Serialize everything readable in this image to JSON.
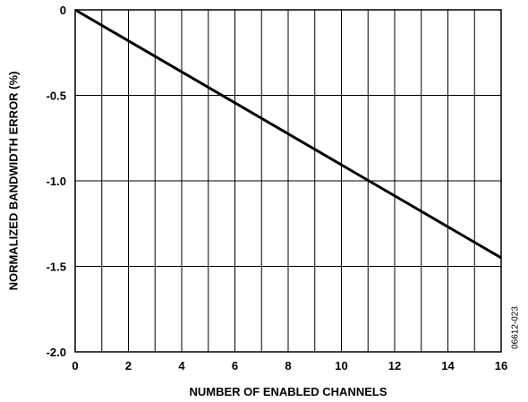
{
  "chart_data": {
    "type": "line",
    "title": "",
    "xlabel": "NUMBER OF ENABLED CHANNELS",
    "ylabel": "NORMALIZED BANDWIDTH ERROR (%)",
    "xlim": [
      0,
      16
    ],
    "ylim": [
      -2.0,
      0
    ],
    "grid": true,
    "x_ticks": [
      0,
      2,
      4,
      6,
      8,
      10,
      12,
      14,
      16
    ],
    "x_tick_labels": [
      "0",
      "2",
      "4",
      "6",
      "8",
      "10",
      "12",
      "14",
      "16"
    ],
    "y_ticks": [
      0,
      -0.5,
      -1.0,
      -1.5,
      -2.0
    ],
    "y_tick_labels": [
      "0",
      "-0.5",
      "-1.0",
      "-1.5",
      "-2.0"
    ],
    "series": [
      {
        "x": [
          0,
          16
        ],
        "y": [
          0,
          -1.45
        ],
        "color": "#000000"
      }
    ],
    "figure_id": "06612-023"
  }
}
